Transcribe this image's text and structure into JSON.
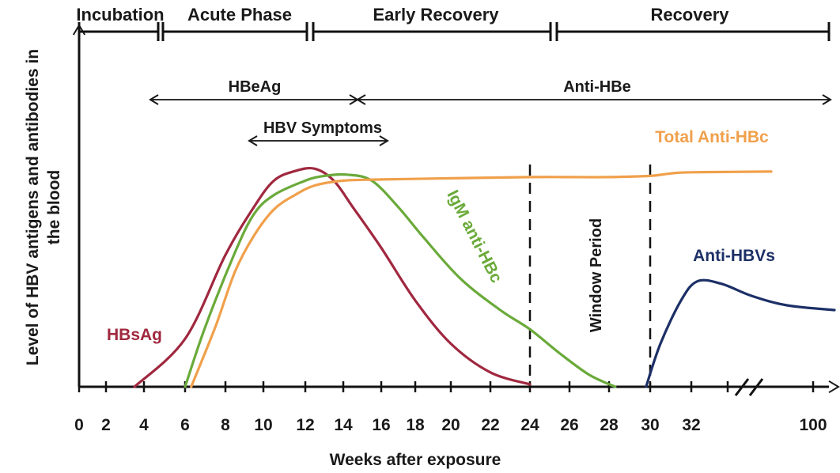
{
  "chart_data": {
    "type": "line",
    "xlabel": "Weeks after exposure",
    "ylabel_lines": [
      "Level of HBV antigens and antibodies in",
      "the blood"
    ],
    "x_ticks": [
      "0",
      "2",
      "4",
      "6",
      "8",
      "10",
      "12",
      "14",
      "16",
      "18",
      "20",
      "22",
      "24",
      "26",
      "28",
      "30",
      "32",
      "100"
    ],
    "axis_break": "32–100 weeks",
    "phases": [
      {
        "label": "Incubation",
        "start": 0,
        "end": 4.5
      },
      {
        "label": "Acute Phase",
        "start": 4.8,
        "end": 12
      },
      {
        "label": "Early Recovery",
        "start": 12.4,
        "end": 25
      },
      {
        "label": "Recovery",
        "start": 25.4,
        "end": 100
      }
    ],
    "markers": [
      {
        "label": "HBeAg",
        "start": 4,
        "end": 15
      },
      {
        "label": "Anti-HBe",
        "start": 15,
        "end": 100
      },
      {
        "label": "HBV  Symptoms",
        "start": 9.5,
        "end": 16.5
      }
    ],
    "window_period": {
      "label": "Window Period",
      "start": 24,
      "end": 30
    },
    "series": [
      {
        "name": "HBsAg",
        "color": "#a0283f",
        "points": [
          [
            3.5,
            0
          ],
          [
            6,
            20
          ],
          [
            8,
            55
          ],
          [
            9.5,
            75
          ],
          [
            10.5,
            86
          ],
          [
            11.5,
            90
          ],
          [
            12.5,
            91
          ],
          [
            13.5,
            86
          ],
          [
            14.5,
            75
          ],
          [
            16,
            58
          ],
          [
            18,
            36
          ],
          [
            20,
            18
          ],
          [
            22,
            6
          ],
          [
            24,
            1
          ]
        ]
      },
      {
        "name": "IgM anti-HBc",
        "color": "#6aaa3a",
        "points": [
          [
            6,
            0
          ],
          [
            7,
            25
          ],
          [
            8.5,
            56
          ],
          [
            9.5,
            72
          ],
          [
            10.5,
            80
          ],
          [
            12,
            86
          ],
          [
            13,
            88
          ],
          [
            14.2,
            88.5
          ],
          [
            15.5,
            86
          ],
          [
            17,
            75
          ],
          [
            18.5,
            62
          ],
          [
            20.5,
            45
          ],
          [
            22.5,
            32
          ],
          [
            24,
            24
          ],
          [
            25.5,
            14
          ],
          [
            27,
            5
          ],
          [
            28.3,
            0
          ]
        ]
      },
      {
        "name": "Total Anti-HBc",
        "color": "#f0a04b",
        "points": [
          [
            6.3,
            0
          ],
          [
            7.5,
            25
          ],
          [
            8.5,
            48
          ],
          [
            9.5,
            63
          ],
          [
            10.5,
            74
          ],
          [
            11.5,
            80
          ],
          [
            12.5,
            84
          ],
          [
            14,
            86
          ],
          [
            16,
            86.5
          ],
          [
            20,
            87
          ],
          [
            24,
            87.5
          ],
          [
            26,
            87.5
          ],
          [
            28,
            87.5
          ],
          [
            30,
            88
          ],
          [
            31,
            89
          ],
          [
            32,
            89.5
          ],
          [
            36,
            89.8
          ]
        ]
      },
      {
        "name": "Anti-HBVs",
        "color": "#1c2f66",
        "points": [
          [
            29.8,
            0
          ],
          [
            30.5,
            18
          ],
          [
            31.5,
            36
          ],
          [
            32.3,
            44
          ],
          [
            33.5,
            43
          ],
          [
            35,
            38
          ],
          [
            36.5,
            34
          ],
          [
            38,
            32
          ]
        ]
      }
    ]
  }
}
